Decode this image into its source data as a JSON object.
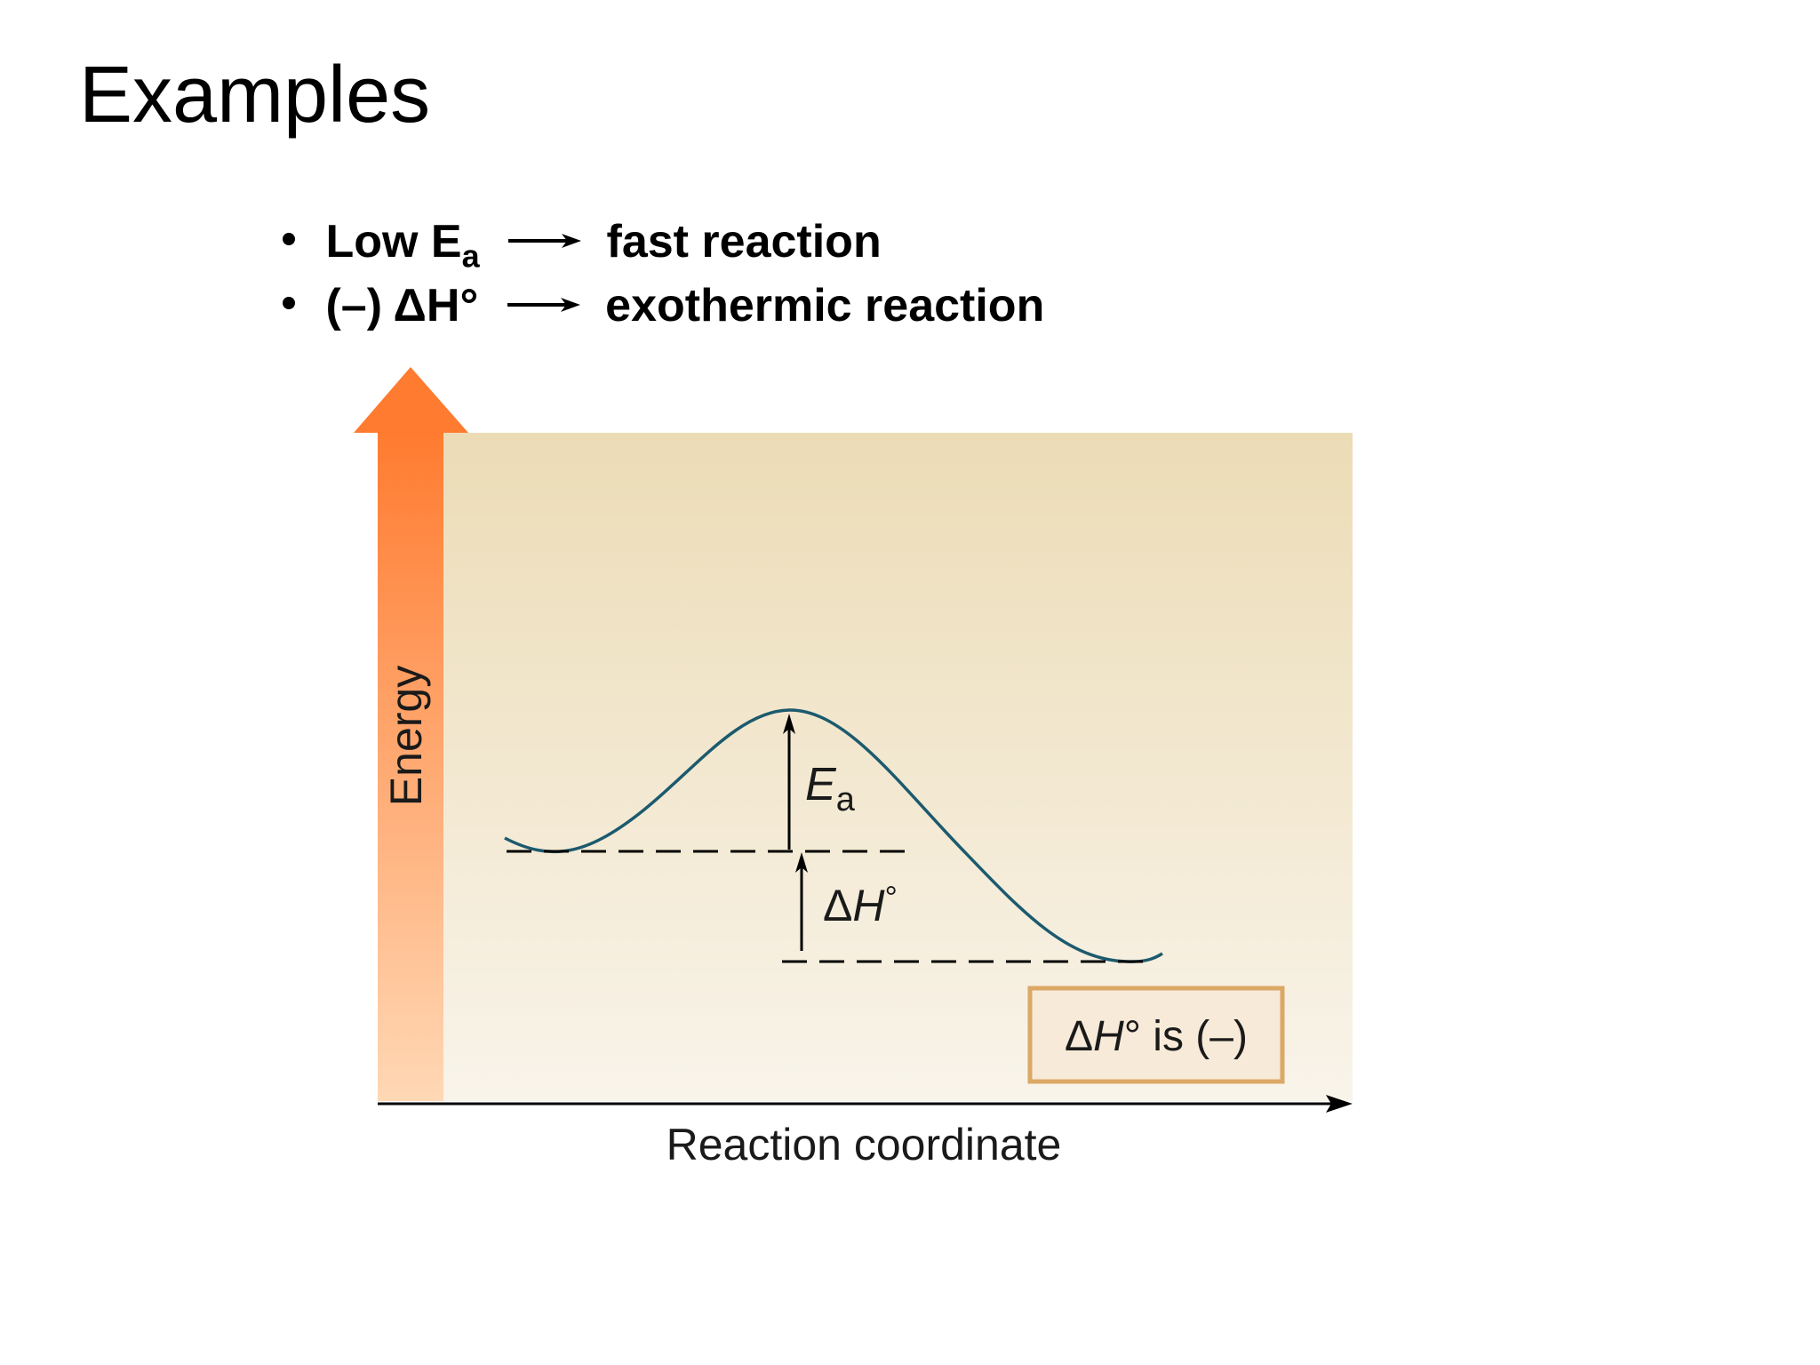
{
  "slide": {
    "title": "Examples"
  },
  "bullets": [
    {
      "term": "Low E",
      "subscript": "a",
      "result": "fast reaction"
    },
    {
      "term": "(–) ΔH°",
      "result": "exothermic reaction"
    }
  ],
  "diagram": {
    "y_axis_label": "Energy",
    "x_axis_label": "Reaction coordinate",
    "ea_label_main": "E",
    "ea_label_sub": "a",
    "dh_label_delta": "Δ",
    "dh_label_h": "H",
    "dh_label_degree": "°",
    "box_delta": "Δ",
    "box_h": "H",
    "box_rest": "° is (–)",
    "colors": {
      "panel_top": "#ecdcb6",
      "panel_bottom": "#f9f4ea",
      "arrow_top": "#ff7b30",
      "arrow_bottom": "#ffd8b5",
      "curve": "#1c5a6e",
      "box_border": "#dba866",
      "box_fill": "#f7ead8"
    }
  }
}
